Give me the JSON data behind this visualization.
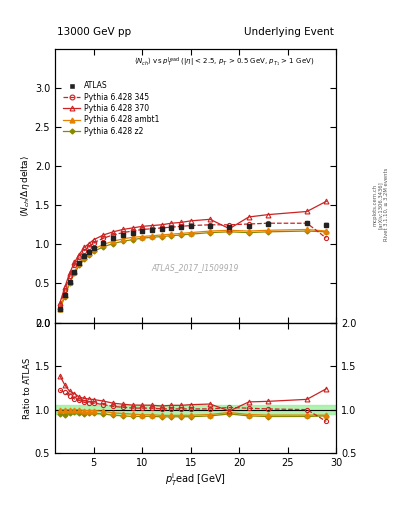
{
  "title_left": "13000 GeV pp",
  "title_right": "Underlying Event",
  "watermark": "ATLAS_2017_I1509919",
  "right_label1": "Rivet 3.1.10, ≥ 3.2M events",
  "right_label2": "[arXiv:1306.3436]",
  "right_label3": "mcplots.cern.ch",
  "main_ylim": [
    0,
    3.5
  ],
  "ratio_ylim": [
    0.5,
    2.0
  ],
  "xlim": [
    1,
    30
  ],
  "atlas_x": [
    1.5,
    2.0,
    2.5,
    3.0,
    3.5,
    4.0,
    4.5,
    5.0,
    6.0,
    7.0,
    8.0,
    9.0,
    10.0,
    11.0,
    12.0,
    13.0,
    14.0,
    15.0,
    17.0,
    19.0,
    21.0,
    23.0,
    27.0,
    29.0
  ],
  "atlas_y": [
    0.18,
    0.35,
    0.52,
    0.65,
    0.76,
    0.85,
    0.9,
    0.95,
    1.02,
    1.08,
    1.12,
    1.15,
    1.17,
    1.18,
    1.2,
    1.21,
    1.22,
    1.23,
    1.24,
    1.22,
    1.24,
    1.26,
    1.27,
    1.25
  ],
  "atlas_yerr": [
    0.01,
    0.01,
    0.01,
    0.01,
    0.01,
    0.01,
    0.01,
    0.01,
    0.01,
    0.01,
    0.01,
    0.01,
    0.01,
    0.01,
    0.01,
    0.01,
    0.01,
    0.01,
    0.01,
    0.01,
    0.01,
    0.01,
    0.01,
    0.02
  ],
  "py345_x": [
    1.5,
    2.0,
    2.5,
    3.0,
    3.5,
    4.0,
    4.5,
    5.0,
    6.0,
    7.0,
    8.0,
    9.0,
    10.0,
    11.0,
    12.0,
    13.0,
    14.0,
    15.0,
    17.0,
    19.0,
    21.0,
    23.0,
    27.0,
    29.0
  ],
  "py345_y": [
    0.22,
    0.42,
    0.6,
    0.73,
    0.84,
    0.92,
    0.97,
    1.02,
    1.08,
    1.12,
    1.15,
    1.17,
    1.19,
    1.2,
    1.21,
    1.22,
    1.23,
    1.24,
    1.25,
    1.25,
    1.26,
    1.27,
    1.27,
    1.08
  ],
  "py370_x": [
    1.5,
    2.0,
    2.5,
    3.0,
    3.5,
    4.0,
    4.5,
    5.0,
    6.0,
    7.0,
    8.0,
    9.0,
    10.0,
    11.0,
    12.0,
    13.0,
    14.0,
    15.0,
    17.0,
    19.0,
    21.0,
    23.0,
    27.0,
    29.0
  ],
  "py370_y": [
    0.25,
    0.45,
    0.63,
    0.77,
    0.87,
    0.96,
    1.01,
    1.06,
    1.12,
    1.16,
    1.19,
    1.21,
    1.23,
    1.24,
    1.25,
    1.27,
    1.28,
    1.3,
    1.32,
    1.2,
    1.35,
    1.38,
    1.42,
    1.55
  ],
  "pyambt1_x": [
    1.5,
    2.0,
    2.5,
    3.0,
    3.5,
    4.0,
    4.5,
    5.0,
    6.0,
    7.0,
    8.0,
    9.0,
    10.0,
    11.0,
    12.0,
    13.0,
    14.0,
    15.0,
    17.0,
    19.0,
    21.0,
    23.0,
    27.0,
    29.0
  ],
  "pyambt1_y": [
    0.18,
    0.35,
    0.52,
    0.65,
    0.76,
    0.84,
    0.89,
    0.94,
    1.0,
    1.04,
    1.07,
    1.09,
    1.1,
    1.11,
    1.12,
    1.13,
    1.14,
    1.15,
    1.17,
    1.18,
    1.17,
    1.18,
    1.19,
    1.17
  ],
  "pyz2_x": [
    1.5,
    2.0,
    2.5,
    3.0,
    3.5,
    4.0,
    4.5,
    5.0,
    6.0,
    7.0,
    8.0,
    9.0,
    10.0,
    11.0,
    12.0,
    13.0,
    14.0,
    15.0,
    17.0,
    19.0,
    21.0,
    23.0,
    27.0,
    29.0
  ],
  "pyz2_y": [
    0.17,
    0.33,
    0.5,
    0.63,
    0.73,
    0.81,
    0.86,
    0.91,
    0.97,
    1.01,
    1.04,
    1.06,
    1.08,
    1.09,
    1.1,
    1.11,
    1.12,
    1.13,
    1.15,
    1.16,
    1.15,
    1.16,
    1.17,
    1.16
  ],
  "color_atlas": "#222222",
  "color_py345": "#cc2222",
  "color_py370": "#cc2222",
  "color_pyambt1": "#e68000",
  "color_pyz2": "#888800",
  "ratio_band_color": "#90ee90",
  "ratio_band_alpha": 0.7
}
